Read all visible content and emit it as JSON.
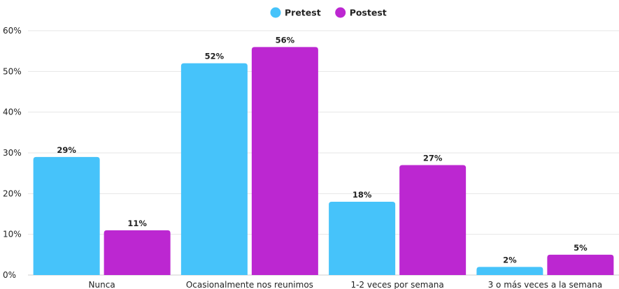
{
  "chart_data": {
    "type": "bar",
    "categories": [
      "Nunca",
      "Ocasionalmente nos reunimos",
      "1-2 veces por semana",
      "3 o más veces a la semana"
    ],
    "series": [
      {
        "name": "Pretest",
        "values": [
          29,
          52,
          18,
          2
        ],
        "labels": [
          "29%",
          "52%",
          "18%",
          "2%"
        ],
        "color": "#46C3FA"
      },
      {
        "name": "Postest",
        "values": [
          11,
          56,
          27,
          5
        ],
        "labels": [
          "11%",
          "56%",
          "27%",
          "5%"
        ],
        "color": "#BC27D1"
      }
    ],
    "ylim": [
      0,
      60
    ],
    "yticks": [
      0,
      10,
      20,
      30,
      40,
      50,
      60
    ],
    "ytick_labels": [
      "0%",
      "10%",
      "20%",
      "30%",
      "40%",
      "50%",
      "60%"
    ],
    "grid": true,
    "legend_position": "top-center"
  }
}
